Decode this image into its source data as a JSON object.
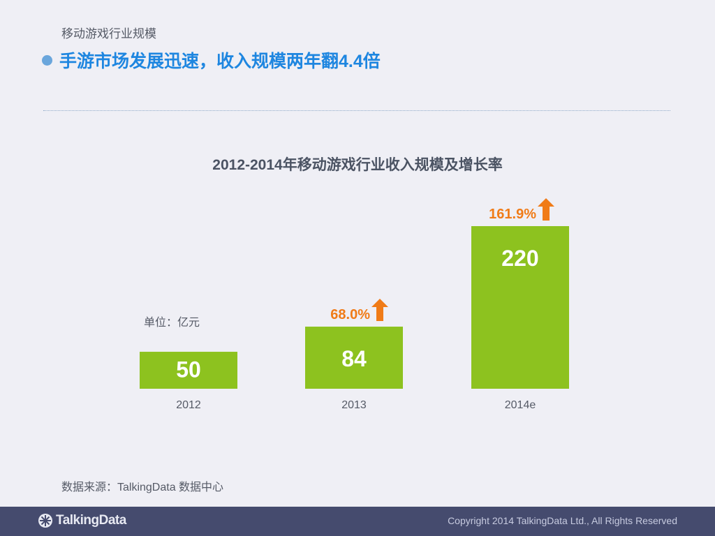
{
  "header": {
    "section_label": "移动游戏行业规模",
    "headline": "手游市场发展迅速，收入规模两年翻4.4倍"
  },
  "chart_data": {
    "type": "bar",
    "title": "2012-2014年移动游戏行业收入规模及增长率",
    "unit_label": "单位：亿元",
    "categories": [
      "2012",
      "2013",
      "2014e"
    ],
    "values": [
      50,
      84,
      220
    ],
    "data_labels": [
      "50",
      "84",
      "220"
    ],
    "growth_labels": [
      "",
      "68.0%",
      "161.9%"
    ],
    "ylim": [
      0,
      240
    ],
    "grid": false,
    "bar_color": "#8dc21f",
    "growth_color": "#f07b17"
  },
  "source": "数据来源：TalkingData 数据中心",
  "footer": {
    "logo_text": "TalkingData",
    "copyright": "Copyright 2014 TalkingData Ltd., All Rights Reserved"
  }
}
